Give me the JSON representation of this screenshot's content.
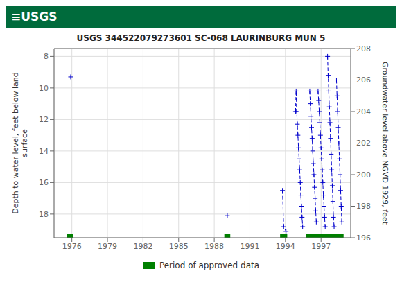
{
  "chart_data": {
    "type": "line",
    "title": "USGS 344522079273601 SC-068 LAURINBURG MUN 5",
    "annotations": [
      {
        "text": "≡USGS",
        "color": "#006B3C"
      }
    ],
    "ylabel": "Depth to water level, feet below land\nsurface",
    "y2label": "Groundwater level above NGVD 1929, feet",
    "xlim": [
      1974.5,
      1999.5
    ],
    "xticks": [
      1976,
      1979,
      1982,
      1985,
      1988,
      1991,
      1994,
      1997
    ],
    "ylim": [
      19.5,
      7.5
    ],
    "yticks": [
      8,
      10,
      12,
      14,
      16,
      18
    ],
    "y2lim": [
      196,
      208
    ],
    "y2ticks": [
      196,
      198,
      200,
      202,
      204,
      206,
      208
    ],
    "grid": true,
    "series": [
      {
        "type": "line",
        "color": "#0000cc",
        "marker": "plus",
        "line_style": "dashed",
        "segments": [
          [
            {
              "x": 1975.9,
              "y": 9.3
            }
          ],
          [
            {
              "x": 1989.1,
              "y": 18.1
            }
          ],
          [
            {
              "x": 1993.75,
              "y": 16.5
            },
            {
              "x": 1993.85,
              "y": 18.8
            },
            {
              "x": 1994.05,
              "y": 19.1
            }
          ],
          [
            {
              "x": 1994.85,
              "y": 11.5
            },
            {
              "x": 1994.9,
              "y": 10.2
            },
            {
              "x": 1994.95,
              "y": 11.5
            },
            {
              "x": 1995.0,
              "y": 12.3
            },
            {
              "x": 1995.05,
              "y": 13.0
            },
            {
              "x": 1995.1,
              "y": 13.8
            },
            {
              "x": 1995.15,
              "y": 14.5
            },
            {
              "x": 1995.2,
              "y": 15.2
            },
            {
              "x": 1995.25,
              "y": 16.0
            },
            {
              "x": 1995.3,
              "y": 16.8
            },
            {
              "x": 1995.35,
              "y": 17.5
            },
            {
              "x": 1995.4,
              "y": 18.2
            },
            {
              "x": 1995.45,
              "y": 18.8
            }
          ],
          [
            {
              "x": 1996.05,
              "y": 10.2
            },
            {
              "x": 1996.1,
              "y": 11.0
            },
            {
              "x": 1996.15,
              "y": 11.8
            },
            {
              "x": 1996.2,
              "y": 12.5
            },
            {
              "x": 1996.25,
              "y": 13.2
            },
            {
              "x": 1996.3,
              "y": 14.0
            },
            {
              "x": 1996.35,
              "y": 14.8
            },
            {
              "x": 1996.4,
              "y": 15.5
            },
            {
              "x": 1996.45,
              "y": 16.3
            },
            {
              "x": 1996.5,
              "y": 17.0
            },
            {
              "x": 1996.55,
              "y": 17.8
            },
            {
              "x": 1996.6,
              "y": 18.5
            }
          ],
          [
            {
              "x": 1996.75,
              "y": 10.2
            },
            {
              "x": 1996.8,
              "y": 10.8
            },
            {
              "x": 1996.85,
              "y": 11.5
            },
            {
              "x": 1996.9,
              "y": 12.2
            },
            {
              "x": 1996.95,
              "y": 13.0
            },
            {
              "x": 1997.0,
              "y": 13.8
            },
            {
              "x": 1997.05,
              "y": 14.5
            },
            {
              "x": 1997.1,
              "y": 15.2
            },
            {
              "x": 1997.15,
              "y": 16.0
            },
            {
              "x": 1997.2,
              "y": 16.8
            },
            {
              "x": 1997.25,
              "y": 17.5
            },
            {
              "x": 1997.3,
              "y": 18.2
            },
            {
              "x": 1997.35,
              "y": 18.8
            }
          ],
          [
            {
              "x": 1997.55,
              "y": 8.0
            },
            {
              "x": 1997.6,
              "y": 9.2
            },
            {
              "x": 1997.65,
              "y": 10.2
            },
            {
              "x": 1997.7,
              "y": 11.2
            },
            {
              "x": 1997.75,
              "y": 12.2
            },
            {
              "x": 1997.8,
              "y": 13.2
            },
            {
              "x": 1997.85,
              "y": 14.2
            },
            {
              "x": 1997.9,
              "y": 15.2
            },
            {
              "x": 1997.95,
              "y": 16.2
            },
            {
              "x": 1998.0,
              "y": 17.2
            },
            {
              "x": 1998.05,
              "y": 18.2
            },
            {
              "x": 1998.1,
              "y": 18.8
            }
          ],
          [
            {
              "x": 1998.3,
              "y": 9.5
            },
            {
              "x": 1998.35,
              "y": 10.5
            },
            {
              "x": 1998.4,
              "y": 11.5
            },
            {
              "x": 1998.45,
              "y": 12.5
            },
            {
              "x": 1998.5,
              "y": 13.5
            },
            {
              "x": 1998.55,
              "y": 14.5
            },
            {
              "x": 1998.6,
              "y": 15.5
            },
            {
              "x": 1998.65,
              "y": 16.5
            },
            {
              "x": 1998.7,
              "y": 17.5
            },
            {
              "x": 1998.75,
              "y": 18.5
            }
          ]
        ]
      },
      {
        "type": "span",
        "name": "Period of approved data",
        "color": "#008000",
        "periods": [
          {
            "start": 1975.6,
            "end": 1976.1
          },
          {
            "start": 1988.85,
            "end": 1989.35
          },
          {
            "start": 1993.55,
            "end": 1994.15
          },
          {
            "start": 1995.75,
            "end": 1998.9
          }
        ]
      }
    ]
  }
}
